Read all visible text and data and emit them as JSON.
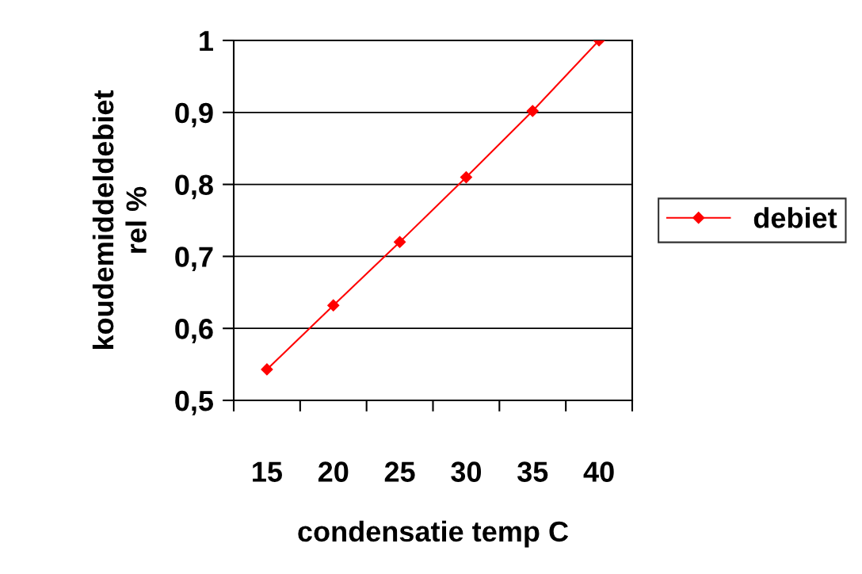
{
  "chart_data": {
    "type": "line",
    "xlabel": "condensatie temp C",
    "ylabel": "koudemiddeldebiet\nrel %",
    "categories": [
      "15",
      "20",
      "25",
      "30",
      "35",
      "40"
    ],
    "series": [
      {
        "name": "debiet",
        "color": "#ff0000",
        "values": [
          0.543,
          0.632,
          0.72,
          0.81,
          0.902,
          1.0
        ]
      }
    ],
    "ylim": [
      0.5,
      1
    ],
    "yticks": [
      {
        "value": 0.5,
        "label": "0,5"
      },
      {
        "value": 0.6,
        "label": "0,6"
      },
      {
        "value": 0.7,
        "label": "0,7"
      },
      {
        "value": 0.8,
        "label": "0,8"
      },
      {
        "value": 0.9,
        "label": "0,9"
      },
      1
    ],
    "grid": "y",
    "legend": "right",
    "marker": "diamond",
    "line_style": "solid"
  }
}
